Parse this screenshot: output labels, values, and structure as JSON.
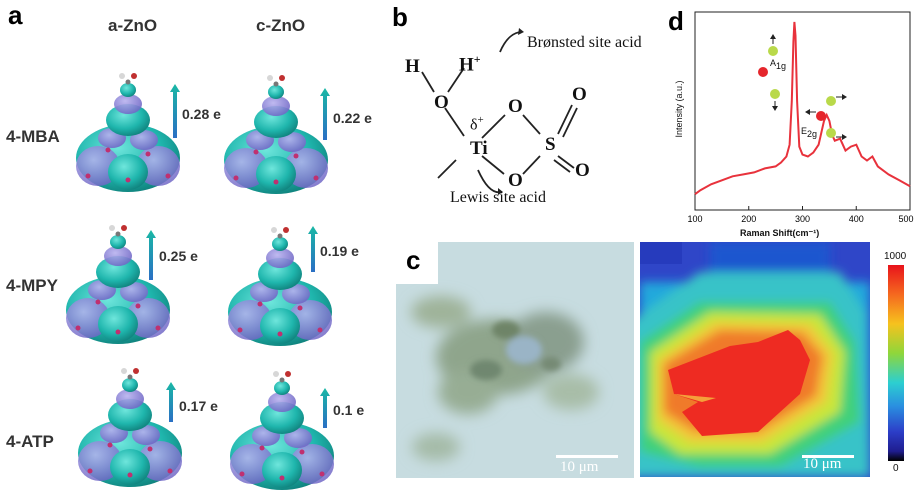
{
  "panel_a": {
    "letter": "a",
    "columns": [
      "a-ZnO",
      "c-ZnO"
    ],
    "rows": [
      {
        "label": "4-MBA",
        "charges": [
          "0.28 e",
          "0.22 e"
        ]
      },
      {
        "label": "4-MPY",
        "charges": [
          "0.25 e",
          "0.19 e"
        ]
      },
      {
        "label": "4-ATP",
        "charges": [
          "0.17 e",
          "0.1 e"
        ]
      }
    ],
    "colors": {
      "isosurface_cyan": "#2bbcb6",
      "isosurface_purple": "#8f86d6",
      "arrow_top": "#19b8a5",
      "arrow_bottom": "#2a6fc4"
    }
  },
  "panel_b": {
    "letter": "b",
    "atoms": {
      "H": "H",
      "H_plus": "H",
      "plus": "+",
      "O_left": "O",
      "Ti": "Ti",
      "delta": "δ",
      "O_top": "O",
      "O_bottom": "O",
      "S": "S",
      "O_right_top": "O",
      "O_right_bottom": "O"
    },
    "bronsted_label": "Brønsted site acid",
    "lewis_label": "Lewis site acid"
  },
  "panel_c": {
    "letter": "c",
    "scale_left": "10 μm",
    "scale_right": "10 μm",
    "colorbar_max": "1000",
    "colorbar_min": "0"
  },
  "panel_d": {
    "letter": "d",
    "peak_labels": {
      "a1g": "A",
      "a1g_sub": "1g",
      "e2g": "E",
      "e2g_sub": "2g"
    },
    "colors": {
      "line": "#e8323c",
      "atom_green": "#b9d94a",
      "atom_red": "#e5262c"
    }
  },
  "chart_data": {
    "type": "line",
    "xlabel": "Raman Shift(cm⁻¹)",
    "ylabel": "Intensity (a.u.)",
    "xlim": [
      100,
      500
    ],
    "xticks": [
      100,
      200,
      300,
      400,
      500
    ],
    "series": [
      {
        "x": [
          100,
          110,
          130,
          150,
          170,
          190,
          210,
          230,
          250,
          260,
          270,
          276,
          280,
          283,
          285,
          287,
          290,
          294,
          300,
          310,
          320,
          330,
          340,
          345,
          350,
          355,
          360,
          370,
          380,
          390,
          400,
          410,
          420,
          430,
          440,
          460,
          480,
          500
        ],
        "y": [
          0.08,
          0.1,
          0.13,
          0.15,
          0.17,
          0.18,
          0.19,
          0.21,
          0.22,
          0.24,
          0.27,
          0.33,
          0.55,
          0.85,
          0.95,
          0.88,
          0.55,
          0.32,
          0.28,
          0.27,
          0.29,
          0.33,
          0.45,
          0.48,
          0.45,
          0.38,
          0.35,
          0.36,
          0.3,
          0.32,
          0.33,
          0.27,
          0.25,
          0.27,
          0.22,
          0.18,
          0.15,
          0.12
        ]
      }
    ]
  }
}
